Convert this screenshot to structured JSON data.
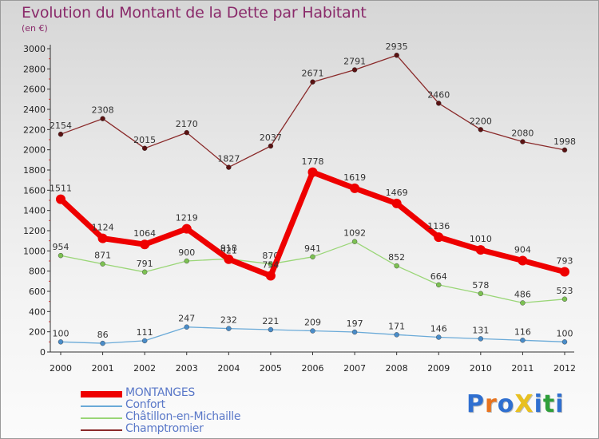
{
  "title": "Evolution du Montant de la Dette par Habitant",
  "subtitle": "(en €)",
  "brand": {
    "text": "ProXiti",
    "colors": [
      "#2f6fd0",
      "#e8731e",
      "#2f6fd0",
      "#e8c020",
      "#2f6fd0",
      "#2f9f3a",
      "#2f6fd0"
    ]
  },
  "chart_data": {
    "type": "line",
    "title": "Evolution du Montant de la Dette par Habitant",
    "subtitle": "(en €)",
    "xlabel": "",
    "ylabel": "",
    "x": [
      "2000",
      "2001",
      "2002",
      "2003",
      "2004",
      "2005",
      "2006",
      "2007",
      "2008",
      "2009",
      "2010",
      "2011",
      "2012"
    ],
    "ylim": [
      0,
      3000
    ],
    "yticks": [
      0,
      200,
      400,
      600,
      800,
      1000,
      1200,
      1400,
      1600,
      1800,
      2000,
      2200,
      2400,
      2600,
      2800,
      3000
    ],
    "grid": false,
    "legend_position": "bottom-left",
    "series": [
      {
        "name": "Champtromier",
        "color": "#6b1a1a",
        "values": [
          2154,
          2308,
          2015,
          2170,
          1827,
          2037,
          2671,
          2791,
          2935,
          2460,
          2200,
          2080,
          1998
        ]
      },
      {
        "name": "Châtillon-en-Michaille",
        "color": "#8fd16a",
        "values": [
          954,
          871,
          791,
          900,
          921,
          870,
          941,
          1092,
          852,
          664,
          578,
          486,
          523
        ]
      },
      {
        "name": "Confort",
        "color": "#5a9fd4",
        "values": [
          100,
          86,
          111,
          247,
          232,
          221,
          209,
          197,
          171,
          146,
          131,
          116,
          100
        ]
      },
      {
        "name": "MONTANGES",
        "color": "#ee0000",
        "values": [
          1511,
          1124,
          1064,
          1219,
          918,
          754,
          1778,
          1619,
          1469,
          1136,
          1010,
          904,
          793
        ]
      }
    ],
    "legend_order": [
      "MONTANGES",
      "Confort",
      "Châtillon-en-Michaille",
      "Champtromier"
    ]
  }
}
